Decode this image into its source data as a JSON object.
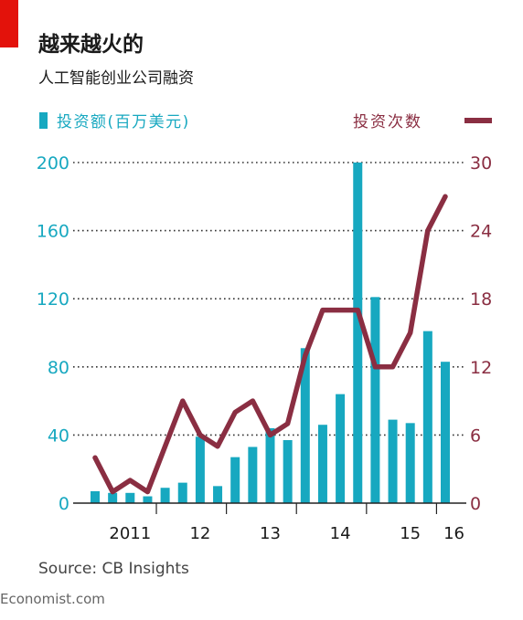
{
  "title": "越来越火的",
  "subtitle": "人工智能创业公司融资",
  "source": "Source: CB Insights",
  "credit": "Economist.com",
  "colors": {
    "accent": "#e3120b",
    "bars": "#17a8c0",
    "line": "#8a2e42",
    "grid": "#333333",
    "text": "#1a1a1a"
  },
  "chart_data": {
    "type": "bar",
    "combo": "bar+line",
    "legend": {
      "bars_label": "投资额(百万美元)",
      "line_label": "投资次数",
      "placement": "top"
    },
    "x_tick_labels": [
      {
        "label": "2011",
        "index": 2
      },
      {
        "label": "12",
        "index": 6
      },
      {
        "label": "13",
        "index": 10
      },
      {
        "label": "14",
        "index": 14
      },
      {
        "label": "15",
        "index": 18
      },
      {
        "label": "16",
        "index": 20.5
      }
    ],
    "quarters": 21,
    "left_axis": {
      "min": 0,
      "max": 200,
      "ticks": [
        0,
        40,
        80,
        120,
        160,
        200
      ]
    },
    "right_axis": {
      "min": 0,
      "max": 30,
      "ticks": [
        0,
        6,
        12,
        18,
        24,
        30
      ]
    },
    "grid": true,
    "series": [
      {
        "name": "投资额(百万美元)",
        "kind": "bar",
        "axis": "left",
        "values": [
          7,
          6,
          6,
          4,
          9,
          12,
          39,
          10,
          27,
          33,
          44,
          37,
          91,
          46,
          64,
          200,
          121,
          49,
          47,
          101,
          83
        ]
      },
      {
        "name": "投资次数",
        "kind": "line",
        "axis": "right",
        "values": [
          4,
          1,
          2,
          1,
          5,
          9,
          6,
          5,
          8,
          9,
          6,
          7,
          13,
          17,
          17,
          17,
          12,
          12,
          15,
          24,
          27
        ]
      }
    ]
  }
}
